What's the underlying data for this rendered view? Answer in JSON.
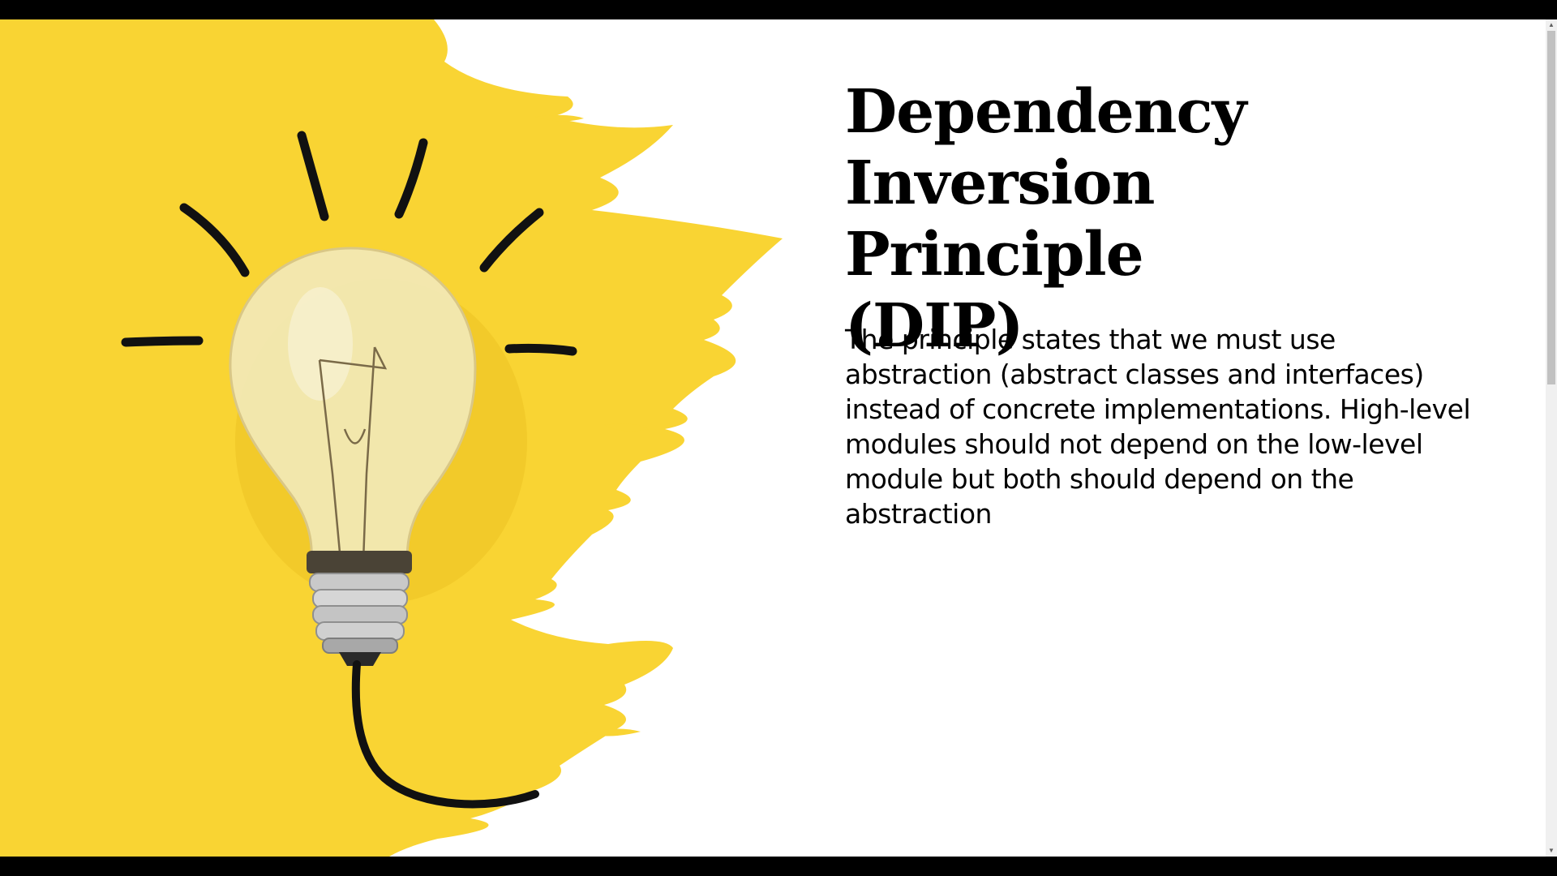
{
  "slide": {
    "title_lines": [
      "Dependency",
      "Inversion Principle",
      "(DIP)"
    ],
    "body": "The principle states that we must use abstraction (abstract classes and interfaces) instead of concrete implementations. High-level modules should not depend on the low-level module but both should depend on the abstraction"
  },
  "colors": {
    "splash": "#f9d433",
    "background": "#ffffff",
    "text": "#000000"
  },
  "icons": {
    "illustration": "lightbulb-icon",
    "scroll_up": "arrow-up-icon",
    "scroll_down": "arrow-down-icon"
  }
}
